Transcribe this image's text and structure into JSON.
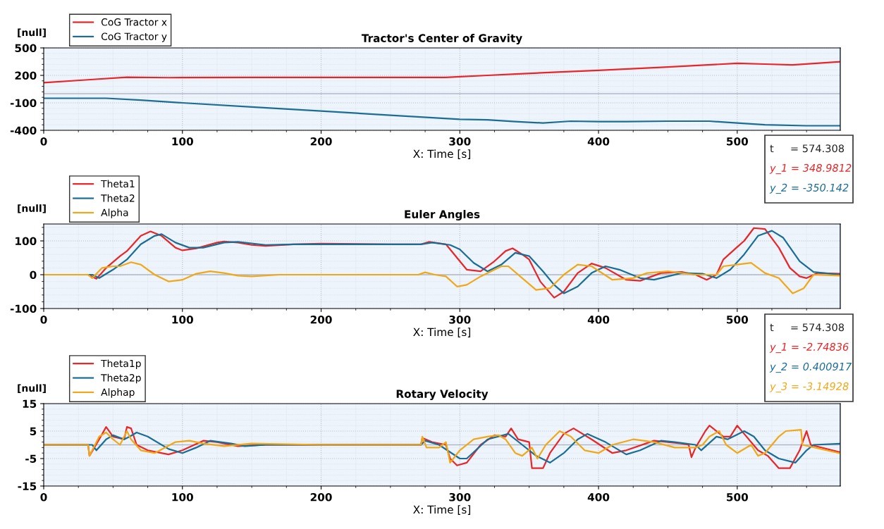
{
  "chart_data": [
    {
      "type": "line",
      "title": "Tractor's Center of Gravity",
      "xlabel": "X: Time [s]",
      "ylabel": "[null]",
      "xlim": [
        0,
        574.308
      ],
      "xticks": [
        0,
        100,
        200,
        300,
        400,
        500
      ],
      "ylim": [
        -400,
        500
      ],
      "yticks": [
        500,
        200,
        -100,
        -400
      ],
      "grid": true,
      "legend": "top left",
      "ref_lines": [
        {
          "axis": "y",
          "value": 0,
          "color": "#b0b8c8"
        },
        {
          "axis": "x",
          "value": 574.308,
          "color": "#4a90d9"
        }
      ],
      "annotations": [
        "t     = 574.308",
        "y_1 = 348.9812",
        "y_2 = -350.142"
      ],
      "series": [
        {
          "name": "CoG Tractor x",
          "color": "#e8262a",
          "x": [
            0,
            30,
            60,
            90,
            150,
            200,
            250,
            290,
            300,
            320,
            340,
            370,
            400,
            450,
            500,
            520,
            540,
            574.308
          ],
          "values": [
            120,
            150,
            180,
            175,
            178,
            178,
            178,
            178,
            185,
            200,
            215,
            235,
            254,
            292,
            331,
            323,
            315,
            349
          ]
        },
        {
          "name": "CoG Tractor y",
          "color": "#1a6e96",
          "x": [
            0,
            20,
            45,
            70,
            100,
            150,
            200,
            250,
            300,
            320,
            340,
            360,
            380,
            400,
            420,
            450,
            480,
            500,
            520,
            550,
            574.308
          ],
          "values": [
            -50,
            -50,
            -50,
            -70,
            -100,
            -145,
            -190,
            -235,
            -280,
            -285,
            -305,
            -320,
            -300,
            -305,
            -305,
            -300,
            -300,
            -320,
            -340,
            -350,
            -350
          ]
        }
      ]
    },
    {
      "type": "line",
      "title": "Euler Angles",
      "xlabel": "X: Time [s]",
      "ylabel": "[null]",
      "xlim": [
        0,
        574.308
      ],
      "xticks": [
        0,
        100,
        200,
        300,
        400,
        500
      ],
      "ylim": [
        -100,
        150
      ],
      "yticks": [
        100,
        0,
        -100
      ],
      "grid": true,
      "legend": "top left",
      "ref_lines": [
        {
          "axis": "y",
          "value": 0,
          "color": "#b0b8c8"
        },
        {
          "axis": "x",
          "value": 574.308,
          "color": "#4a90d9"
        }
      ],
      "series": [
        {
          "name": "Theta1",
          "color": "#e8262a",
          "x": [
            0,
            32,
            38,
            45,
            55,
            60,
            70,
            77,
            85,
            95,
            100,
            110,
            125,
            130,
            140,
            150,
            160,
            180,
            200,
            250,
            272,
            278,
            290,
            298,
            305,
            315,
            325,
            333,
            338,
            345,
            350,
            358,
            368,
            375,
            385,
            395,
            405,
            420,
            430,
            445,
            460,
            470,
            478,
            485,
            490,
            500,
            505,
            512,
            520,
            530,
            538,
            545,
            550,
            558,
            574.308
          ],
          "values": [
            0,
            0,
            -12,
            20,
            55,
            70,
            115,
            128,
            115,
            80,
            72,
            78,
            95,
            98,
            95,
            88,
            85,
            90,
            92,
            90,
            90,
            97,
            90,
            50,
            15,
            10,
            40,
            70,
            78,
            60,
            45,
            -20,
            -68,
            -50,
            5,
            33,
            20,
            -15,
            -18,
            5,
            8,
            0,
            -15,
            0,
            45,
            82,
            100,
            138,
            135,
            80,
            20,
            -5,
            -10,
            5,
            3
          ]
        },
        {
          "name": "Theta2",
          "color": "#1a6e96",
          "x": [
            0,
            35,
            40,
            50,
            60,
            70,
            80,
            85,
            95,
            105,
            115,
            130,
            140,
            160,
            180,
            200,
            272,
            280,
            293,
            300,
            310,
            320,
            330,
            340,
            350,
            360,
            368,
            375,
            385,
            395,
            405,
            415,
            430,
            440,
            460,
            475,
            485,
            495,
            505,
            515,
            525,
            533,
            545,
            555,
            574.308
          ],
          "values": [
            0,
            0,
            -10,
            15,
            45,
            90,
            115,
            120,
            95,
            80,
            80,
            95,
            97,
            88,
            90,
            90,
            90,
            95,
            88,
            75,
            35,
            10,
            30,
            65,
            55,
            10,
            -30,
            -55,
            -35,
            5,
            25,
            15,
            -10,
            -15,
            5,
            3,
            -10,
            15,
            60,
            115,
            130,
            110,
            40,
            8,
            0
          ]
        },
        {
          "name": "Alpha",
          "color": "#f0a818",
          "x": [
            0,
            32,
            35,
            42,
            50,
            55,
            63,
            70,
            80,
            90,
            100,
            110,
            120,
            130,
            140,
            150,
            170,
            200,
            270,
            275,
            282,
            290,
            298,
            305,
            315,
            330,
            335,
            345,
            355,
            365,
            375,
            385,
            395,
            410,
            425,
            435,
            450,
            470,
            485,
            490,
            500,
            510,
            520,
            530,
            540,
            548,
            555,
            574.308
          ],
          "values": [
            0,
            0,
            -10,
            20,
            25,
            25,
            37,
            30,
            0,
            -20,
            -15,
            3,
            10,
            5,
            -3,
            -5,
            0,
            0,
            0,
            7,
            0,
            -5,
            -35,
            -30,
            -5,
            25,
            25,
            -10,
            -45,
            -40,
            0,
            30,
            25,
            -15,
            -10,
            5,
            10,
            0,
            0,
            25,
            30,
            35,
            5,
            -10,
            -55,
            -40,
            0,
            -3
          ]
        }
      ]
    },
    {
      "type": "line",
      "title": "Rotary Velocity",
      "xlabel": "X: Time [s]",
      "ylabel": "[null]",
      "xlim": [
        0,
        574.308
      ],
      "xticks": [
        0,
        100,
        200,
        300,
        400,
        500
      ],
      "ylim": [
        -15,
        15
      ],
      "yticks": [
        15,
        5,
        -5,
        -15
      ],
      "grid": true,
      "legend": "top left",
      "ref_lines": [
        {
          "axis": "y",
          "value": 0,
          "color": "#b0b8c8"
        },
        {
          "axis": "x",
          "value": 574.308,
          "color": "#4a90d9"
        }
      ],
      "annotations": [
        "t     = 574.308",
        "y_1 = -2.74836",
        "y_2 = 0.400917",
        "y_3 = -3.14928"
      ],
      "series": [
        {
          "name": "Theta1p",
          "color": "#e8262a",
          "x": [
            0,
            32,
            33,
            40,
            45,
            50,
            58,
            60,
            63,
            67,
            75,
            90,
            100,
            115,
            125,
            140,
            160,
            200,
            272,
            273,
            280,
            290,
            293,
            298,
            305,
            315,
            325,
            333,
            337,
            342,
            350,
            352,
            360,
            365,
            375,
            382,
            395,
            410,
            420,
            440,
            460,
            465,
            467,
            470,
            477,
            480,
            490,
            495,
            500,
            505,
            515,
            522,
            530,
            538,
            545,
            550,
            553,
            574.308
          ],
          "values": [
            0,
            0,
            -4,
            2,
            6.5,
            3,
            2,
            6.5,
            6,
            0,
            -2,
            -3.5,
            -2,
            1.5,
            1,
            -0.5,
            0,
            0,
            0,
            2.5,
            1,
            0,
            -5,
            -7.5,
            -6.5,
            0,
            3.5,
            3,
            6,
            2,
            1,
            -8.5,
            -8.5,
            -3,
            4,
            6,
            2,
            -3,
            -2,
            1.5,
            0.5,
            0,
            -4.5,
            -1,
            5,
            7,
            3,
            3,
            7,
            4,
            -2,
            -4,
            -8.5,
            -8.5,
            -2,
            5,
            0,
            -2.7
          ]
        },
        {
          "name": "Theta2p",
          "color": "#1a6e96",
          "x": [
            0,
            35,
            38,
            45,
            50,
            58,
            62,
            67,
            75,
            90,
            100,
            110,
            120,
            135,
            145,
            160,
            200,
            272,
            275,
            285,
            300,
            305,
            320,
            335,
            345,
            355,
            365,
            375,
            385,
            392,
            405,
            420,
            430,
            445,
            455,
            470,
            474,
            485,
            493,
            505,
            512,
            520,
            530,
            542,
            550,
            555,
            574.308
          ],
          "values": [
            0,
            0,
            -2,
            2,
            3.5,
            2,
            3,
            4.5,
            3,
            -1.5,
            -3,
            -1,
            1.5,
            0.5,
            -0.5,
            0,
            0,
            0,
            1.5,
            0,
            -5,
            -5,
            2,
            4,
            0,
            -4,
            -6.5,
            -3,
            2,
            4,
            1,
            -3.5,
            -2,
            1.5,
            1,
            0,
            -2,
            3,
            2,
            5,
            3,
            -2,
            -5,
            -6.5,
            -2,
            0,
            0.4
          ]
        },
        {
          "name": "Alphap",
          "color": "#f0a818",
          "x": [
            0,
            32,
            33,
            40,
            45,
            50,
            55,
            60,
            63,
            70,
            80,
            95,
            105,
            115,
            130,
            150,
            200,
            272,
            273,
            276,
            285,
            290,
            293,
            300,
            310,
            320,
            328,
            333,
            340,
            345,
            352,
            356,
            362,
            372,
            380,
            390,
            400,
            410,
            425,
            440,
            455,
            470,
            475,
            480,
            487,
            492,
            500,
            510,
            515,
            520,
            530,
            535,
            546,
            547,
            574.308
          ],
          "values": [
            0,
            0,
            -4,
            3,
            4.5,
            2,
            0,
            5,
            2,
            -2,
            -3,
            1,
            1.5,
            0.5,
            -0.5,
            0.5,
            0,
            0,
            3,
            -1,
            -1,
            1,
            -6.5,
            -2,
            2,
            3,
            3.5,
            2,
            -3,
            -4,
            -1,
            -5,
            0,
            5,
            3,
            -2,
            -3,
            0,
            2,
            1,
            -1,
            -1,
            0,
            3,
            5,
            0,
            -3,
            0,
            -4,
            -3,
            3,
            5,
            5.5,
            0,
            -3.1
          ]
        }
      ]
    }
  ]
}
